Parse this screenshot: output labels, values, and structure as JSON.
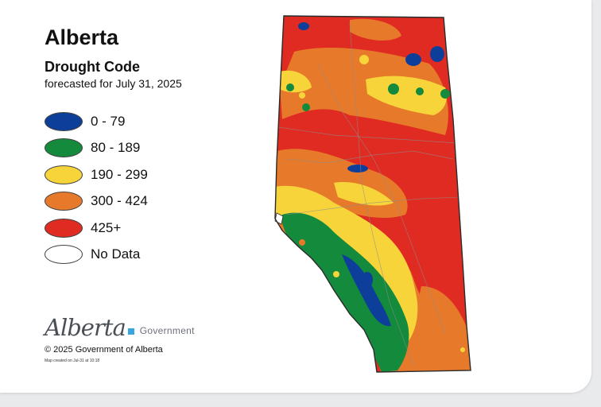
{
  "header": {
    "title": "Alberta",
    "subtitle": "Drought Code",
    "forecast_line": "forecasted for July 31, 2025"
  },
  "legend": [
    {
      "label": "0 - 79",
      "color": "#0d3f9a"
    },
    {
      "label": "80 - 189",
      "color": "#138a3c"
    },
    {
      "label": "190 - 299",
      "color": "#f7d53a"
    },
    {
      "label": "300 - 424",
      "color": "#e6792a"
    },
    {
      "label": "425+",
      "color": "#e02b22"
    },
    {
      "label": "No Data",
      "color": "#ffffff"
    }
  ],
  "logo": {
    "wordmark": "Alberta",
    "government": "Government"
  },
  "copyright": "© 2025 Government of Alberta",
  "created_note": "Map created on Jul-31 at 10:18",
  "map": {
    "region": "Alberta",
    "colors": {
      "low": "#0d3f9a",
      "moderate": "#138a3c",
      "high": "#f7d53a",
      "very_high": "#e6792a",
      "extreme": "#e02b22",
      "boundary": "#2b2b2b",
      "roads": "#8d8d8d"
    }
  }
}
